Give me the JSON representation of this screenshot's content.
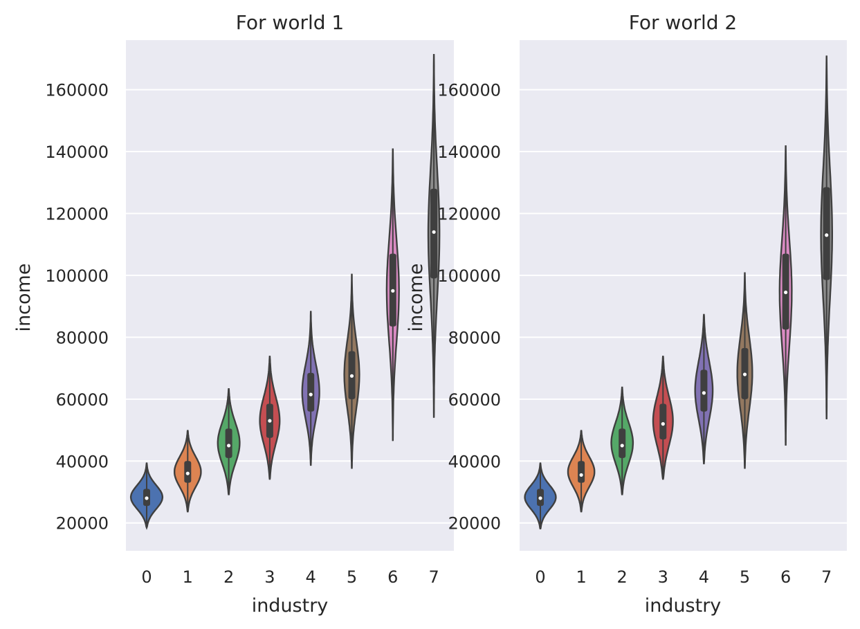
{
  "chart_data": [
    {
      "type": "violin",
      "title": "For world 1",
      "xlabel": "industry",
      "ylabel": "income",
      "categories": [
        "0",
        "1",
        "2",
        "3",
        "4",
        "5",
        "6",
        "7"
      ],
      "yticks": [
        "20000",
        "40000",
        "60000",
        "80000",
        "100000",
        "120000",
        "140000",
        "160000"
      ],
      "ylim": [
        11000,
        176000
      ],
      "grid": true,
      "violins": [
        {
          "category": "0",
          "min": 18500,
          "q1": 25500,
          "median": 28000,
          "q3": 31000,
          "max": 39500,
          "color": "#4c72b0"
        },
        {
          "category": "1",
          "min": 23500,
          "q1": 33000,
          "median": 36000,
          "q3": 40000,
          "max": 50000,
          "color": "#dd8452"
        },
        {
          "category": "2",
          "min": 29000,
          "q1": 41000,
          "median": 45000,
          "q3": 50500,
          "max": 63500,
          "color": "#55a868"
        },
        {
          "category": "3",
          "min": 34000,
          "q1": 47500,
          "median": 53000,
          "q3": 58500,
          "max": 74000,
          "color": "#c44e52"
        },
        {
          "category": "4",
          "min": 38500,
          "q1": 56000,
          "median": 61500,
          "q3": 68500,
          "max": 88500,
          "color": "#8172b3"
        },
        {
          "category": "5",
          "min": 37500,
          "q1": 60000,
          "median": 67500,
          "q3": 75500,
          "max": 100500,
          "color": "#937860"
        },
        {
          "category": "6",
          "min": 46500,
          "q1": 83500,
          "median": 95000,
          "q3": 107000,
          "max": 141000,
          "color": "#da8bc3"
        },
        {
          "category": "7",
          "min": 54000,
          "q1": 99000,
          "median": 114000,
          "q3": 128000,
          "max": 171500,
          "color": "#8c8c8c"
        }
      ]
    },
    {
      "type": "violin",
      "title": "For world 2",
      "xlabel": "industry",
      "ylabel": "income",
      "categories": [
        "0",
        "1",
        "2",
        "3",
        "4",
        "5",
        "6",
        "7"
      ],
      "yticks": [
        "20000",
        "40000",
        "60000",
        "80000",
        "100000",
        "120000",
        "140000",
        "160000"
      ],
      "ylim": [
        11000,
        176000
      ],
      "grid": true,
      "violins": [
        {
          "category": "0",
          "min": 18000,
          "q1": 25500,
          "median": 28000,
          "q3": 31000,
          "max": 39500,
          "color": "#4c72b0"
        },
        {
          "category": "1",
          "min": 23500,
          "q1": 33000,
          "median": 35500,
          "q3": 40000,
          "max": 50000,
          "color": "#dd8452"
        },
        {
          "category": "2",
          "min": 29000,
          "q1": 41000,
          "median": 45000,
          "q3": 50500,
          "max": 64000,
          "color": "#55a868"
        },
        {
          "category": "3",
          "min": 34000,
          "q1": 47000,
          "median": 52000,
          "q3": 58500,
          "max": 74000,
          "color": "#c44e52"
        },
        {
          "category": "4",
          "min": 39000,
          "q1": 56000,
          "median": 62000,
          "q3": 69500,
          "max": 87500,
          "color": "#8172b3"
        },
        {
          "category": "5",
          "min": 37500,
          "q1": 60000,
          "median": 68000,
          "q3": 76500,
          "max": 101000,
          "color": "#937860"
        },
        {
          "category": "6",
          "min": 45000,
          "q1": 82500,
          "median": 94500,
          "q3": 107000,
          "max": 142000,
          "color": "#da8bc3"
        },
        {
          "category": "7",
          "min": 53500,
          "q1": 98500,
          "median": 113000,
          "q3": 128500,
          "max": 171000,
          "color": "#8c8c8c"
        }
      ]
    }
  ]
}
